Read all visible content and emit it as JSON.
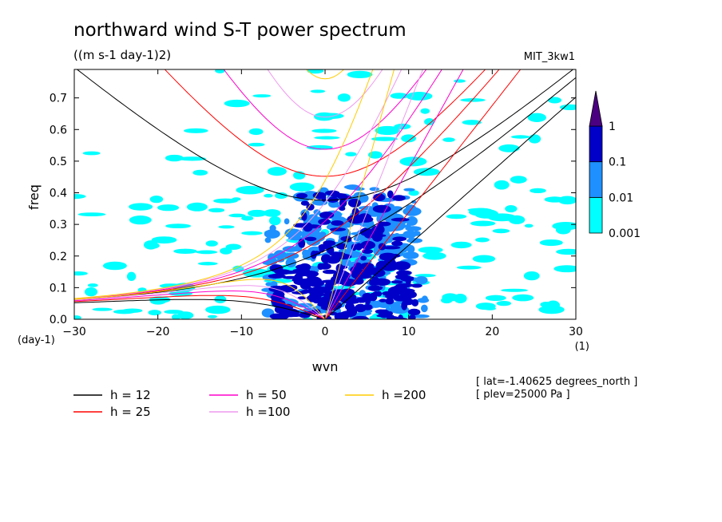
{
  "chart_data": {
    "type": "heatmap",
    "title": "northward wind S-T power spectrum",
    "subtitle": "((m s-1 day-1)2)",
    "model_label": "MIT_3kw1",
    "xlabel": "wvn",
    "ylabel": "freq",
    "x_unit": "(1)",
    "y_unit": "(day-1)",
    "xlim": [
      -30,
      30
    ],
    "ylim": [
      0,
      0.79
    ],
    "x_ticks": [
      "-30",
      "-20",
      "-10",
      "0",
      "10",
      "20",
      "30"
    ],
    "y_ticks": [
      "0.0",
      "0.1",
      "0.2",
      "0.3",
      "0.4",
      "0.5",
      "0.6",
      "0.7"
    ],
    "colorbar": {
      "levels": [
        "0.001",
        "0.01",
        "0.1",
        "1"
      ],
      "colors": [
        "#00ffff",
        "#1e90ff",
        "#0000c8",
        "#4b0082"
      ]
    },
    "annotations": [
      "[ lat=-1.40625 degrees_north ]",
      "[ plev=25000 Pa ]"
    ],
    "dispersion_curves": [
      {
        "name": "h = 12",
        "h": 12,
        "color": "#000000"
      },
      {
        "name": "h = 25",
        "h": 25,
        "color": "#ff0000"
      },
      {
        "name": "h = 50",
        "h": 50,
        "color": "#ff00cc"
      },
      {
        "name": "h =100",
        "h": 100,
        "color": "#ee99ee"
      },
      {
        "name": "h =200",
        "h": 200,
        "color": "#ffcc00"
      }
    ],
    "power_regions": [
      {
        "level": 1,
        "x": [
          -7,
          12
        ],
        "y": [
          0,
          0.32
        ],
        "density": 0.55
      },
      {
        "level": 1,
        "x": [
          -3,
          11
        ],
        "y": [
          0.2,
          0.42
        ],
        "density": 0.45
      },
      {
        "level": 2,
        "x": [
          -6,
          11
        ],
        "y": [
          0,
          0.17
        ],
        "density": 0.6
      },
      {
        "level": 2,
        "x": [
          -3,
          9
        ],
        "y": [
          0.16,
          0.4
        ],
        "density": 0.3
      }
    ]
  }
}
